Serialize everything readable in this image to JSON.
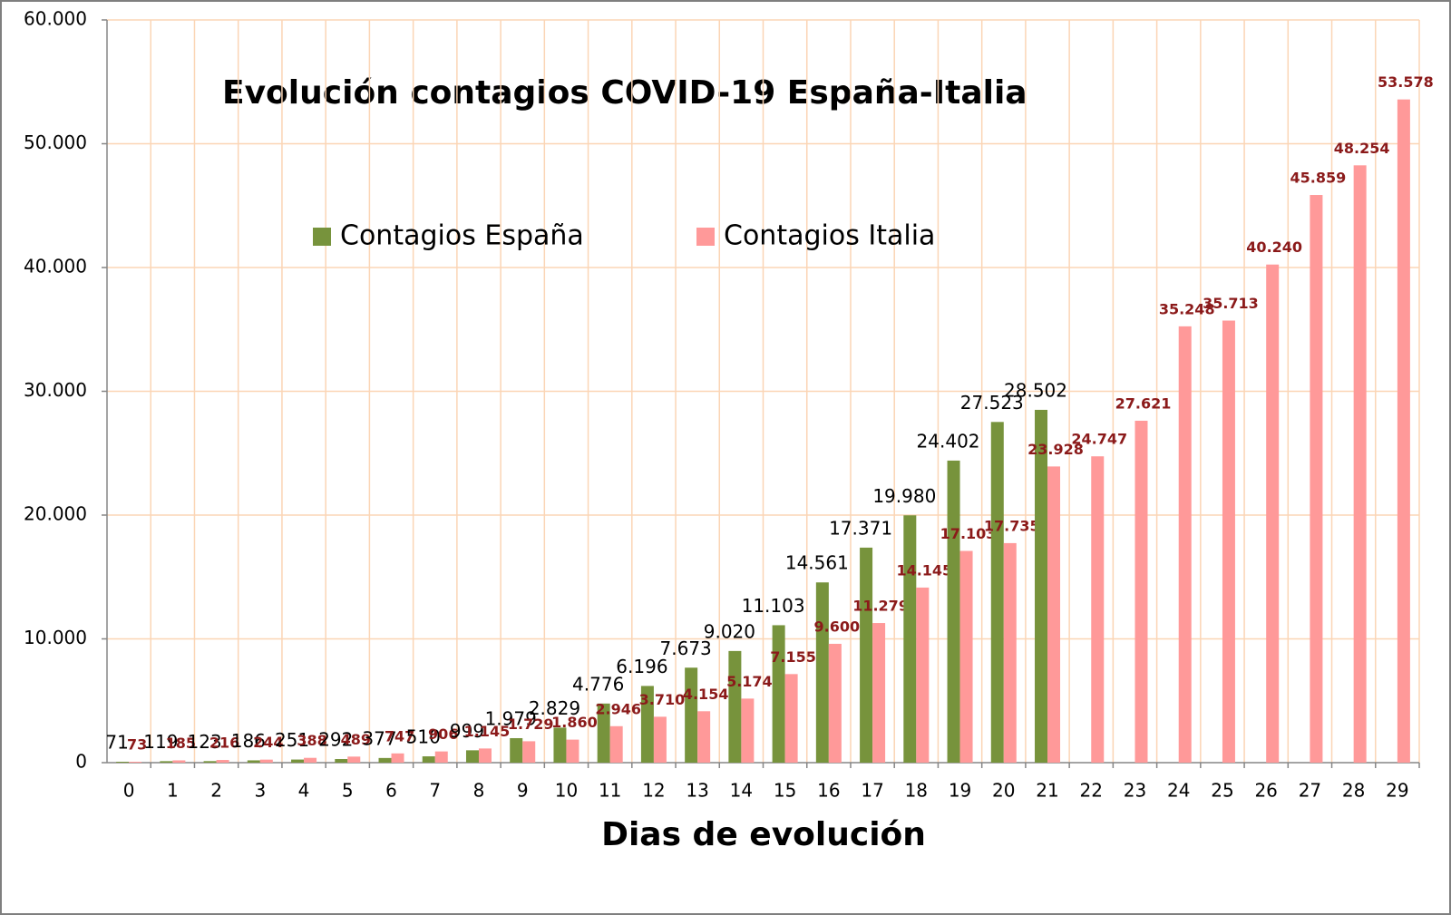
{
  "chart_data": {
    "type": "bar",
    "title": "Evolución contagios COVID-19 España-Italia",
    "x_label": "Dias de evolución",
    "categories": [
      "0",
      "1",
      "2",
      "3",
      "4",
      "5",
      "6",
      "7",
      "8",
      "9",
      "10",
      "11",
      "12",
      "13",
      "14",
      "15",
      "16",
      "17",
      "18",
      "19",
      "20",
      "21",
      "22",
      "23",
      "24",
      "25",
      "26",
      "27",
      "28",
      "29"
    ],
    "series": [
      {
        "name": "Contagios España",
        "color": "#77933c",
        "label_color": "#000000",
        "values": [
          71,
          119,
          123,
          186,
          251,
          292,
          377,
          510,
          999,
          1979,
          2829,
          4776,
          6196,
          7673,
          9020,
          11103,
          14561,
          17371,
          19980,
          24402,
          27523,
          28502,
          null,
          null,
          null,
          null,
          null,
          null,
          null,
          null
        ],
        "value_labels": [
          "71",
          "119",
          "123",
          "186",
          "251",
          "292",
          "377",
          "510",
          "999",
          "1.979",
          "2.829",
          "4.776",
          "6.196",
          "7.673",
          "9.020",
          "11.103",
          "14.561",
          "17.371",
          "19.980",
          "24.402",
          "27.523",
          "28.502",
          null,
          null,
          null,
          null,
          null,
          null,
          null,
          null
        ]
      },
      {
        "name": "Contagios Italia",
        "color": "#ff9999",
        "label_color": "#8b1a1a",
        "values": [
          73,
          185,
          216,
          244,
          388,
          489,
          747,
          906,
          1145,
          1729,
          1860,
          2946,
          3710,
          4154,
          5174,
          7155,
          9600,
          11279,
          14145,
          17103,
          17735,
          23928,
          24747,
          27621,
          35248,
          35713,
          40240,
          45859,
          48254,
          53578
        ],
        "value_labels": [
          "73",
          "185",
          "216",
          "244",
          "388",
          "489",
          "747",
          "906",
          "1.145",
          "1.729",
          "1.860",
          "2.946",
          "3.710",
          "4.154",
          "5.174",
          "7.155",
          "9.600",
          "11.279",
          "14.145",
          "17.103",
          "17.735",
          "23.928",
          "24.747",
          "27.621",
          "35.248",
          "35.713",
          "40.240",
          "45.859",
          "48.254",
          "53.578"
        ]
      }
    ],
    "ylim": [
      0,
      60000
    ],
    "yticks": [
      0,
      {
        "value": 10000,
        "label": "10.000"
      },
      {
        "value": 20000,
        "label": "20.000"
      },
      {
        "value": 30000,
        "label": "30.000"
      },
      {
        "value": 40000,
        "label": "40.000"
      },
      {
        "value": 50000,
        "label": "50.000"
      },
      {
        "value": 60000,
        "label": "60.000"
      }
    ],
    "grid": true,
    "legend_position": "top"
  }
}
